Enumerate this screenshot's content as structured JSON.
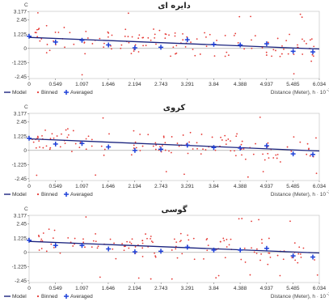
{
  "legend": {
    "model": "Model",
    "binned": "Binned",
    "averaged": "Averaged"
  },
  "axis": {
    "y_unit": "C",
    "xlabel_main": "Distance (Meter), h",
    "xlabel_exp": "· 10",
    "xlabel_sup": "-2"
  },
  "colors": {
    "model": "#1a237e",
    "binned": "#e53935",
    "averaged": "#1e40d8"
  },
  "chart_data": [
    {
      "type": "scatter",
      "title": "دایره ای",
      "y_ticks_label": [
        "3.177",
        "2.45",
        "1.225",
        "0",
        "-1.225",
        "-2.45"
      ],
      "x_ticks_label": [
        "0",
        "0.549",
        "1.097",
        "1.646",
        "2.194",
        "2.743",
        "3.291",
        "3.84",
        "4.388",
        "4.937",
        "5.485",
        "6.034"
      ],
      "model": {
        "type": "line",
        "start_y": 0.95,
        "end_y": -0.05
      },
      "averaged": {
        "x": [
          0.0,
          0.55,
          1.1,
          1.65,
          2.2,
          2.74,
          3.29,
          3.84,
          4.39,
          4.94,
          5.49,
          5.9
        ],
        "y": [
          1.05,
          0.55,
          0.7,
          0.3,
          0.05,
          0.1,
          0.75,
          0.35,
          0.3,
          0.4,
          -0.25,
          -0.3
        ]
      }
    },
    {
      "type": "scatter",
      "title": "کروی",
      "y_ticks_label": [
        "3.177",
        "2.45",
        "1.225",
        "0",
        "-1.225",
        "-2.45"
      ],
      "x_ticks_label": [
        "0",
        "0.549",
        "1.097",
        "1.646",
        "2.194",
        "2.743",
        "3.291",
        "3.84",
        "4.388",
        "4.937",
        "5.485",
        "6.034"
      ],
      "model": {
        "type": "line",
        "start_y": 1.0,
        "end_y": -0.05
      },
      "averaged": {
        "x": [
          0.0,
          0.55,
          1.1,
          1.65,
          2.2,
          2.74,
          3.29,
          3.84,
          4.39,
          4.94,
          5.49,
          5.9
        ],
        "y": [
          1.05,
          0.55,
          0.6,
          0.3,
          0.0,
          0.1,
          0.45,
          0.25,
          0.2,
          0.4,
          -0.3,
          -0.35
        ]
      }
    },
    {
      "type": "scatter",
      "title": "گوسی",
      "y_ticks_label": [
        "3.177",
        "2.45",
        "1.225",
        "0",
        "-1.225",
        "-2.45"
      ],
      "x_ticks_label": [
        "0",
        "0.549",
        "1.097",
        "1.646",
        "2.194",
        "2.743",
        "3.291",
        "3.84",
        "4.388",
        "4.937",
        "5.485",
        "6.034"
      ],
      "model": {
        "type": "line",
        "start_y": 0.95,
        "end_y": -0.05
      },
      "averaged": {
        "x": [
          0.0,
          0.55,
          1.1,
          1.65,
          2.2,
          2.74,
          3.29,
          3.84,
          4.39,
          4.94,
          5.49,
          5.9
        ],
        "y": [
          1.05,
          0.6,
          0.6,
          0.3,
          0.05,
          0.1,
          0.45,
          0.2,
          0.2,
          0.35,
          -0.3,
          -0.4
        ]
      }
    }
  ]
}
